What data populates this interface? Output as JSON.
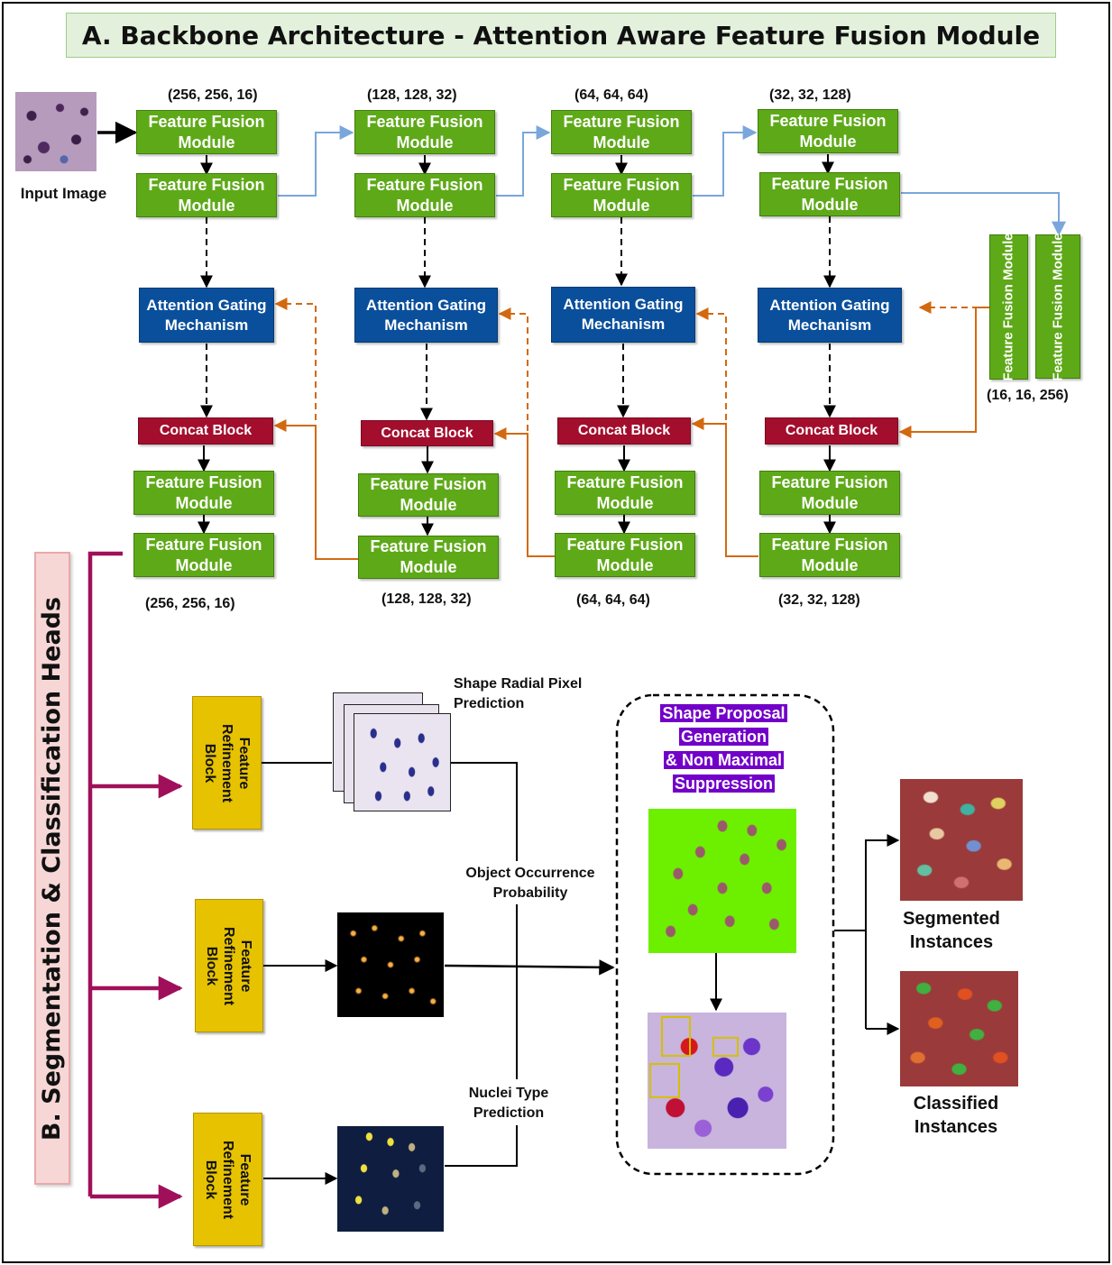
{
  "title": "A. Backbone Architecture - Attention Aware Feature Fusion Module",
  "input_label": "Input Image",
  "ffm_label_line1": "Feature Fusion",
  "ffm_label_line2": "Module",
  "ffm_label_vertical": "Feature Fusion Module",
  "agm_label_line1": "Attention Gating",
  "agm_label_line2": "Mechanism",
  "concat_label": "Concat Block",
  "encoder_dims": [
    "(256, 256, 16)",
    "(128, 128, 32)",
    "(64, 64, 64)",
    "(32, 32, 128)"
  ],
  "bottleneck_dim": "(16, 16, 256)",
  "decoder_dims": [
    "(256, 256, 16)",
    "(128, 128, 32)",
    "(64, 64, 64)",
    "(32, 32, 128)"
  ],
  "heads_title": "B. Segmentation & Classification Heads",
  "frb_label": "Feature Refinement Block",
  "outputs": {
    "shape_radial": "Shape Radial Pixel Prediction",
    "object_occurrence": "Object Occurrence Probability",
    "nuclei_type": "Nuclei Type Prediction"
  },
  "proposal_title": [
    "Shape Proposal",
    "Generation",
    "& Non Maximal",
    "Suppression"
  ],
  "result_labels": {
    "segmented": "Segmented Instances",
    "classified": "Classified Instances"
  },
  "colors": {
    "ffm": "#5ea918",
    "agm": "#0a4f9b",
    "concat": "#a30e2d",
    "frb": "#e6c200",
    "skip_blue": "#7aa6dc",
    "skip_orange": "#d3690f",
    "heads_arrow": "#a0105a",
    "proposal_highlight": "#7200c9"
  }
}
